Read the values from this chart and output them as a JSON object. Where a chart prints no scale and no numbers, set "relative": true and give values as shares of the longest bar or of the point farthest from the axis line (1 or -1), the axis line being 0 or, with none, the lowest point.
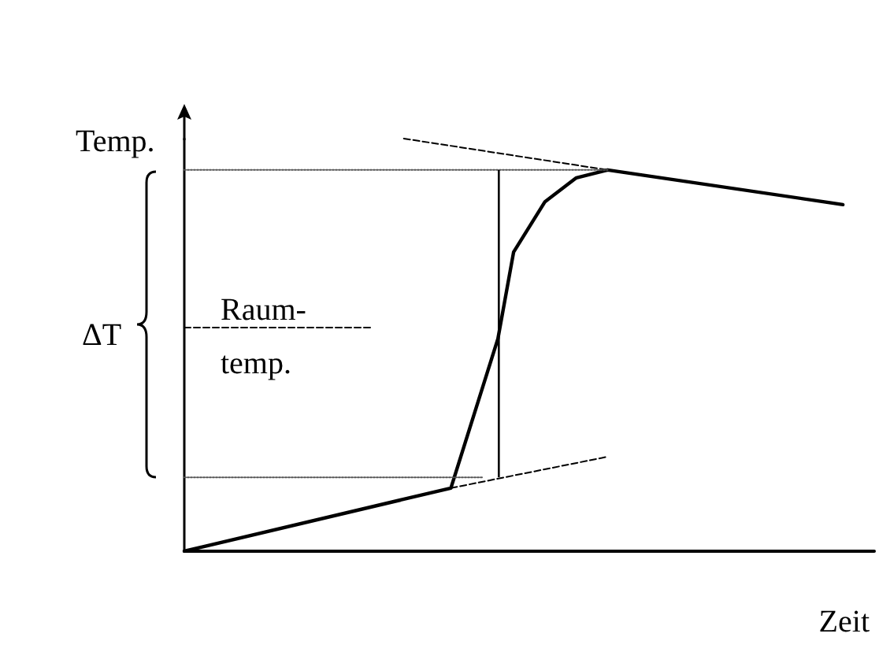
{
  "chart_data": {
    "type": "line",
    "relative": true,
    "xlabel": "Zeit",
    "ylabel": "Temp.",
    "grid": false,
    "marker": "none",
    "categories": [
      null,
      null,
      null,
      null,
      null,
      null,
      null,
      null,
      null,
      null,
      null,
      null,
      null,
      null,
      null,
      null,
      null,
      null,
      null,
      null,
      null,
      null,
      null,
      null,
      null,
      null,
      null,
      null,
      null,
      null,
      null,
      null,
      null,
      null,
      null,
      null,
      null,
      null,
      null,
      null,
      null,
      null,
      null,
      null,
      null
    ],
    "series": [
      {
        "color": "#000000",
        "line_style": "solid",
        "values": [
          0,
          null,
          null,
          null,
          null,
          null,
          null,
          null,
          null,
          null,
          null,
          null,
          null,
          null,
          null,
          null,
          null,
          0.153,
          null,
          null,
          0.515,
          0.725,
          null,
          0.847,
          null,
          0.905,
          null,
          0.924,
          null,
          null,
          null,
          null,
          null,
          null,
          null,
          null,
          null,
          null,
          null,
          null,
          null,
          null,
          0.84,
          null,
          null
        ]
      },
      {
        "color": "#000000",
        "line_style": "dashed",
        "values": [
          null,
          null,
          null,
          null,
          null,
          null,
          null,
          null,
          null,
          null,
          null,
          null,
          null,
          null,
          1,
          null,
          null,
          null,
          null,
          null,
          null,
          null,
          null,
          null,
          null,
          null,
          null,
          0.924,
          null,
          null,
          null,
          null,
          null,
          null,
          null,
          null,
          null,
          null,
          null,
          null,
          null,
          null,
          null,
          null,
          null
        ]
      },
      {
        "color": "#000000",
        "line_style": "dashed",
        "values": [
          null,
          null,
          null,
          null,
          null,
          null,
          null,
          null,
          null,
          null,
          null,
          null,
          null,
          null,
          null,
          null,
          null,
          0.153,
          null,
          null,
          null,
          null,
          null,
          null,
          null,
          null,
          null,
          0.229,
          null,
          null,
          null,
          null,
          null,
          null,
          null,
          null,
          null,
          null,
          null,
          null,
          null,
          null,
          null,
          null,
          null
        ]
      },
      {
        "color": "#555555",
        "line_style": "dotted",
        "values": [
          0.924,
          null,
          null,
          null,
          null,
          null,
          null,
          null,
          null,
          null,
          null,
          null,
          null,
          null,
          null,
          null,
          null,
          null,
          null,
          null,
          null,
          null,
          null,
          null,
          null,
          null,
          null,
          0.924,
          null,
          null,
          null,
          null,
          null,
          null,
          null,
          null,
          null,
          null,
          null,
          null,
          null,
          null,
          null,
          null,
          null
        ]
      },
      {
        "color": "#555555",
        "line_style": "dotted",
        "values": [
          0.179,
          null,
          null,
          null,
          null,
          null,
          null,
          null,
          null,
          null,
          null,
          null,
          null,
          null,
          null,
          null,
          null,
          null,
          null,
          0.179,
          null,
          null,
          null,
          null,
          null,
          null,
          null,
          null,
          null,
          null,
          null,
          null,
          null,
          null,
          null,
          null,
          null,
          null,
          null,
          null,
          null,
          null,
          null,
          null,
          null
        ]
      },
      {
        "color": "#000000",
        "line_style": "dashed",
        "values": [
          0.542,
          null,
          null,
          null,
          null,
          null,
          null,
          null,
          null,
          null,
          null,
          null,
          0.542,
          null,
          null,
          null,
          null,
          null,
          null,
          null,
          null,
          null,
          null,
          null,
          null,
          null,
          null,
          null,
          null,
          null,
          null,
          null,
          null,
          null,
          null,
          null,
          null,
          null,
          null,
          null,
          null,
          null,
          null,
          null,
          null
        ]
      }
    ],
    "annotations": [
      "ΔT",
      "Raum-\ntemp."
    ]
  }
}
